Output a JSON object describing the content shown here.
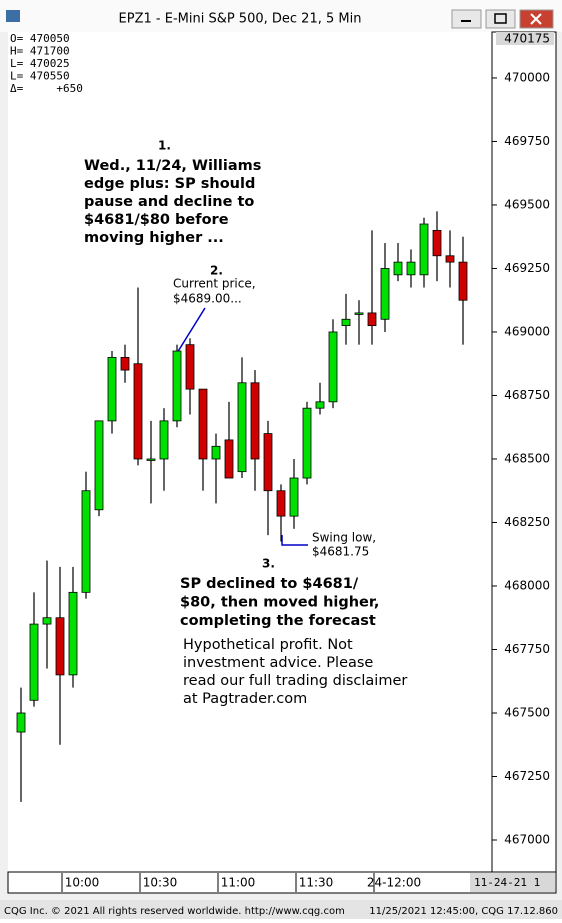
{
  "window_title": "EPZ1 - E-Mini S&P 500, Dec 21, 5 Min",
  "readout": [
    "O= 470050",
    "H= 471700",
    "L= 470025",
    "L= 470550",
    "Δ=     +650"
  ],
  "chart_data": {
    "type": "candlestick",
    "categories": [
      null,
      null,
      null,
      null,
      null,
      "10:00",
      null,
      null,
      null,
      null,
      null,
      "10:30",
      null,
      null,
      null,
      null,
      null,
      "11:00",
      null,
      null,
      null,
      null,
      null,
      "11:30",
      null,
      null,
      null,
      null,
      null,
      "24-12:00",
      null,
      null,
      null,
      null,
      null
    ],
    "open": [
      467425,
      467550,
      467850,
      467875,
      467650,
      467975,
      468300,
      468650,
      468900,
      468875,
      468500,
      468500,
      468650,
      468950,
      468775,
      468500,
      468575,
      468450,
      468800,
      468600,
      468375,
      468275,
      468425,
      468700,
      468725,
      469025,
      469075,
      469075,
      469050,
      469225,
      469225,
      469225,
      469400,
      469300,
      469275
    ],
    "high": [
      467600,
      467975,
      468100,
      468075,
      468075,
      468450,
      468650,
      468925,
      468950,
      469175,
      468650,
      468700,
      468950,
      468975,
      468775,
      468600,
      468725,
      468900,
      468850,
      468650,
      468400,
      468500,
      468725,
      468800,
      469050,
      469150,
      469125,
      469400,
      469350,
      469350,
      469325,
      469450,
      469475,
      469400,
      469375
    ],
    "low": [
      467150,
      467525,
      467675,
      467375,
      467600,
      467950,
      468275,
      468600,
      468800,
      468475,
      468325,
      468375,
      468625,
      468675,
      468375,
      468325,
      468425,
      468425,
      468375,
      468200,
      468175,
      468225,
      468400,
      468675,
      468700,
      468950,
      468950,
      468950,
      469000,
      469200,
      469175,
      469175,
      469200,
      469175,
      468950
    ],
    "close": [
      467500,
      467850,
      467875,
      467650,
      467975,
      468375,
      468650,
      468900,
      468850,
      468500,
      468500,
      468650,
      468925,
      468775,
      468500,
      468550,
      468425,
      468800,
      468500,
      468375,
      468275,
      468425,
      468700,
      468725,
      469000,
      469050,
      469075,
      469025,
      469250,
      469275,
      469275,
      469425,
      469300,
      469275,
      469125
    ],
    "up_color": "#00e000",
    "down_color": "#d00000",
    "ylim": [
      466874,
      470177
    ],
    "yticks": [
      467000,
      467250,
      467500,
      467750,
      468000,
      468250,
      468500,
      468750,
      469000,
      469250,
      469500,
      469750,
      470000
    ],
    "top_label": 470175,
    "date_label": "11-24-21 1",
    "annotations": [
      {
        "number": "1.",
        "lines": [
          "Wed., 11/24, Williams",
          "edge plus: SP should",
          "pause and decline to",
          "$4681/$80 before",
          "moving higher ..."
        ]
      },
      {
        "number": "2.",
        "lines": [
          "Current price,",
          "$4689.00..."
        ]
      },
      {
        "lines": [
          "Swing low,",
          "$4681.75"
        ]
      },
      {
        "number": "3.",
        "lines": [
          "SP declined to $4681/",
          "$80, then moved higher,",
          "completing the forecast"
        ]
      },
      {
        "lines": [
          "Hypothetical profit. Not",
          "investment advice. Please",
          "read our full trading disclaimer",
          "at Pagtrader.com"
        ]
      }
    ]
  },
  "footer": {
    "left": "CQG Inc. © 2021 All rights reserved worldwide. http://www.cqg.com",
    "right": "11/25/2021 12:45:00, CQG 17.12.860"
  }
}
